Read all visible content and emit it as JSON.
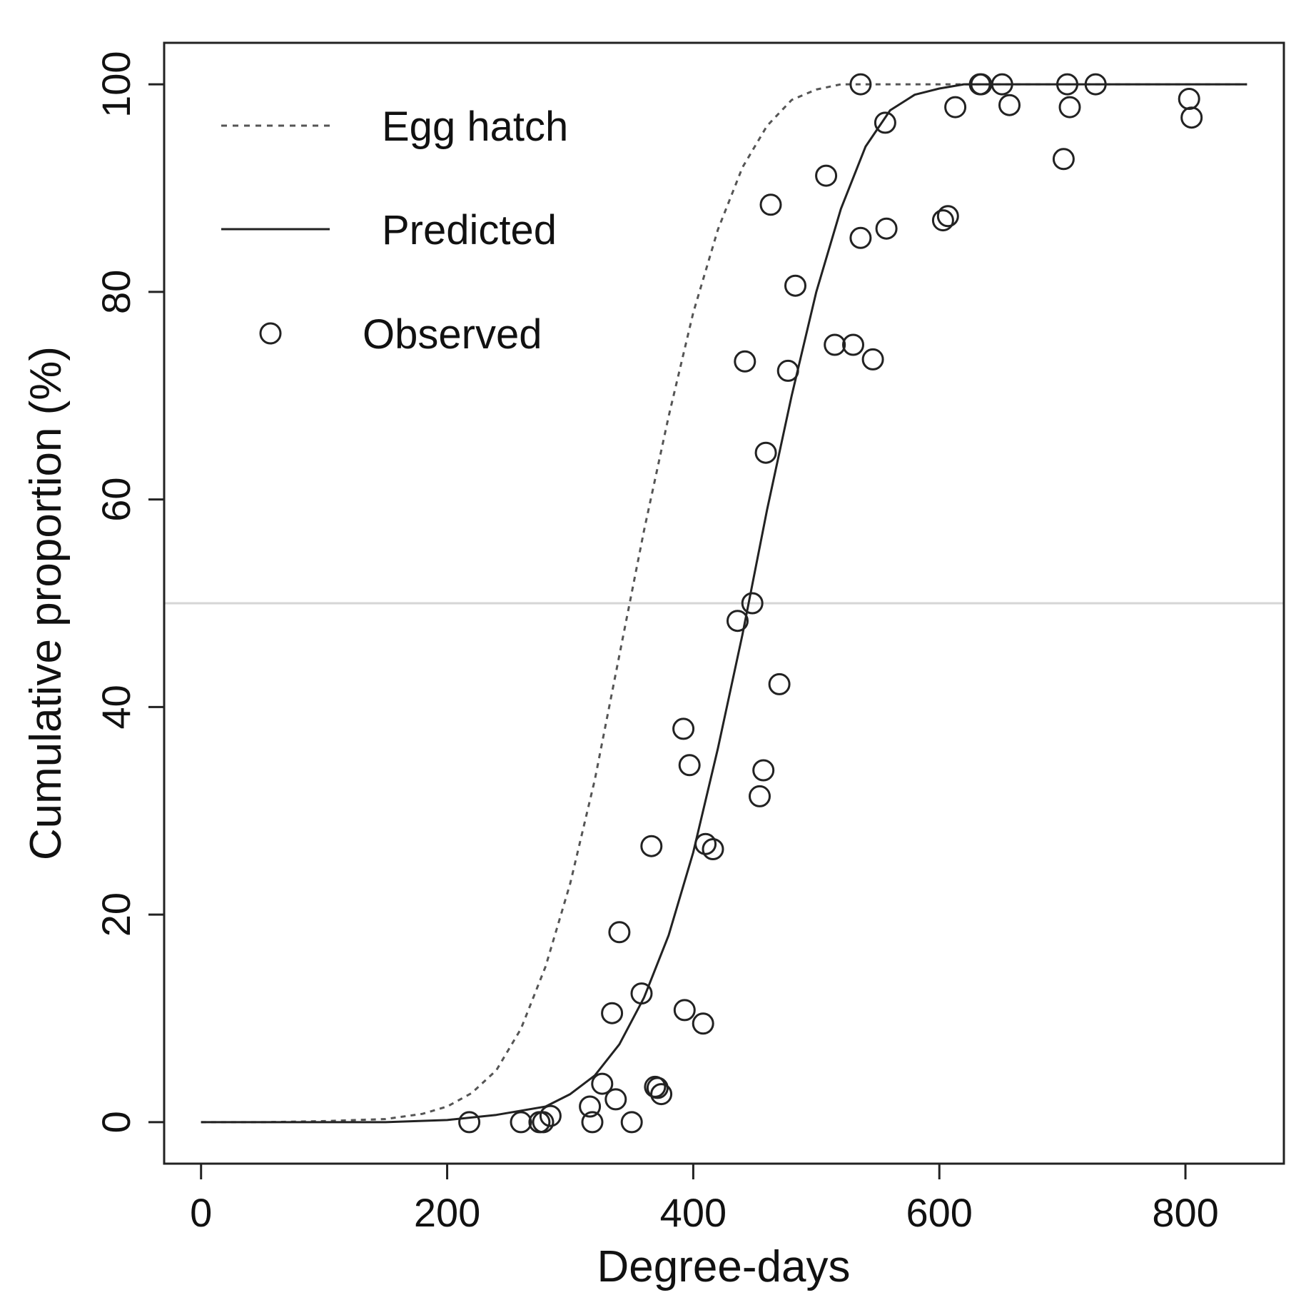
{
  "chart_data": {
    "type": "scatter",
    "title": "",
    "xlabel": "Degree-days",
    "ylabel": "Cumulative proportion (%)",
    "xlim": [
      -30,
      880
    ],
    "ylim": [
      -4,
      104
    ],
    "x_ticks": [
      0,
      200,
      400,
      600,
      800
    ],
    "y_ticks": [
      0,
      20,
      40,
      60,
      80,
      100
    ],
    "x_tick_labels": [
      "0",
      "200",
      "400",
      "600",
      "800"
    ],
    "y_tick_labels": [
      "0",
      "20",
      "40",
      "60",
      "80",
      "100"
    ],
    "grid": false,
    "legend_position": "top-left",
    "reference_line": {
      "y": 50,
      "color": "#d6d6d6"
    },
    "series": [
      {
        "name": "Egg hatch",
        "kind": "line",
        "style": "dotted",
        "color": "#555555",
        "x": [
          0,
          50,
          100,
          150,
          180,
          200,
          220,
          240,
          260,
          280,
          300,
          320,
          340,
          360,
          380,
          400,
          420,
          440,
          460,
          480,
          500,
          520,
          540,
          560,
          600,
          700,
          850
        ],
        "y": [
          0,
          0,
          0.1,
          0.3,
          0.8,
          1.5,
          2.8,
          5,
          9,
          15,
          23,
          33,
          45,
          57,
          68,
          78,
          86,
          92,
          96,
          98.5,
          99.5,
          100,
          100,
          100,
          100,
          100,
          100
        ]
      },
      {
        "name": "Predicted",
        "kind": "line",
        "style": "solid",
        "color": "#222222",
        "x": [
          0,
          100,
          150,
          200,
          240,
          280,
          300,
          320,
          340,
          360,
          380,
          400,
          420,
          440,
          460,
          480,
          500,
          520,
          540,
          560,
          580,
          600,
          620,
          700,
          850
        ],
        "y": [
          0,
          0,
          0,
          0.2,
          0.7,
          1.5,
          2.7,
          4.5,
          7.5,
          12,
          18,
          26,
          36,
          47,
          59,
          70,
          80,
          88,
          94,
          97.5,
          99,
          99.6,
          100,
          100,
          100
        ]
      },
      {
        "name": "Observed",
        "kind": "points",
        "color": "#222222",
        "x": [
          218,
          260,
          275,
          278,
          284,
          316,
          318,
          326,
          337,
          334,
          340,
          350,
          358,
          366,
          369,
          371,
          374,
          392,
          393,
          397,
          408,
          410,
          416,
          436,
          442,
          448,
          454,
          457,
          459,
          463,
          470,
          477,
          483,
          508,
          515,
          530,
          536,
          536,
          546,
          556,
          557,
          603,
          607,
          613,
          633,
          634,
          651,
          657,
          701,
          704,
          706,
          727,
          803,
          805
        ],
        "y": [
          0,
          0,
          0,
          0,
          0.6,
          1.5,
          0,
          3.7,
          2.2,
          10.5,
          18.3,
          0,
          12.4,
          26.6,
          3.4,
          3.3,
          2.7,
          37.9,
          10.8,
          34.4,
          9.5,
          26.8,
          26.3,
          48.3,
          73.3,
          50,
          31.4,
          33.9,
          64.5,
          88.4,
          42.2,
          72.4,
          80.6,
          91.2,
          74.9,
          74.9,
          85.2,
          100,
          73.5,
          96.3,
          86.1,
          86.9,
          87.3,
          97.8,
          100,
          100,
          100,
          98,
          92.8,
          100,
          97.8,
          100,
          98.6,
          96.8
        ]
      }
    ],
    "legend_entries": [
      "Egg hatch",
      "Predicted",
      "Observed"
    ]
  }
}
